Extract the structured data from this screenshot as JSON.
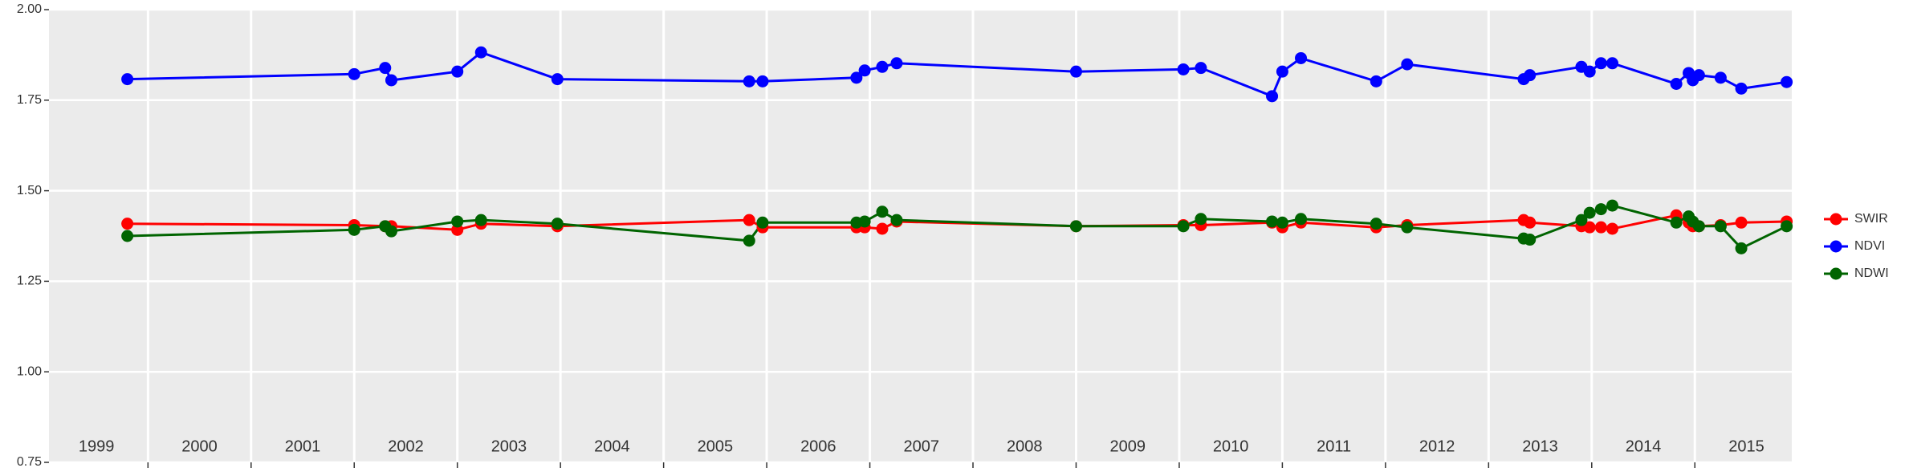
{
  "chart_data": {
    "type": "line",
    "x": [
      1999.8,
      2002.0,
      2002.3,
      2002.36,
      2003.0,
      2003.23,
      2003.97,
      2005.83,
      2005.96,
      2006.87,
      2006.95,
      2007.12,
      2007.26,
      2009.0,
      2010.04,
      2010.21,
      2010.9,
      2011.0,
      2011.18,
      2011.91,
      2012.21,
      2013.34,
      2013.4,
      2013.9,
      2013.98,
      2014.09,
      2014.2,
      2014.82,
      2014.94,
      2014.98,
      2015.04,
      2015.25,
      2015.45,
      2015.89
    ],
    "series": [
      {
        "name": "SWIR",
        "color": "#ff0000",
        "values": [
          1.409,
          1.405,
          1.402,
          1.402,
          1.392,
          1.409,
          1.402,
          1.419,
          1.399,
          1.399,
          1.399,
          1.395,
          1.415,
          1.402,
          1.405,
          1.405,
          1.412,
          1.399,
          1.412,
          1.399,
          1.405,
          1.419,
          1.412,
          1.402,
          1.399,
          1.399,
          1.395,
          1.432,
          1.412,
          1.402,
          1.402,
          1.405,
          1.412,
          1.415
        ]
      },
      {
        "name": "NDVI",
        "color": "#0000ff",
        "values": [
          1.808,
          1.822,
          1.839,
          1.805,
          1.829,
          1.882,
          1.808,
          1.802,
          1.802,
          1.812,
          1.832,
          1.842,
          1.852,
          1.829,
          1.835,
          1.839,
          1.761,
          1.829,
          1.866,
          1.802,
          1.849,
          1.808,
          1.819,
          1.842,
          1.829,
          1.852,
          1.852,
          1.795,
          1.825,
          1.805,
          1.819,
          1.812,
          1.782,
          1.8
        ]
      },
      {
        "name": "NDWI",
        "color": "#006400",
        "values": [
          1.375,
          1.392,
          1.402,
          1.388,
          1.415,
          1.419,
          1.409,
          1.362,
          1.412,
          1.412,
          1.415,
          1.442,
          1.419,
          1.402,
          1.402,
          1.422,
          1.415,
          1.412,
          1.422,
          1.409,
          1.399,
          1.368,
          1.365,
          1.419,
          1.439,
          1.449,
          1.459,
          1.412,
          1.429,
          1.415,
          1.402,
          1.402,
          1.341,
          1.402
        ]
      }
    ],
    "xlim": [
      1999.04,
      2015.94
    ],
    "ylim": [
      0.75,
      2.0
    ],
    "yticks": [
      0.75,
      {
        "value": 1.0,
        "label": "1.00"
      },
      1.25,
      {
        "value": 1.5,
        "label": "1.50"
      },
      1.75,
      {
        "value": 2.0,
        "label": "2.00"
      }
    ],
    "xticks": [
      {
        "value": 1999.5,
        "label": "1999"
      },
      {
        "value": 2000.5,
        "label": "2000"
      },
      {
        "value": 2001.5,
        "label": "2001"
      },
      {
        "value": 2002.5,
        "label": "2002"
      },
      {
        "value": 2003.5,
        "label": "2003"
      },
      {
        "value": 2004.5,
        "label": "2004"
      },
      {
        "value": 2005.5,
        "label": "2005"
      },
      {
        "value": 2006.5,
        "label": "2006"
      },
      {
        "value": 2007.5,
        "label": "2007"
      },
      {
        "value": 2008.5,
        "label": "2008"
      },
      {
        "value": 2009.5,
        "label": "2009"
      },
      {
        "value": 2010.5,
        "label": "2010"
      },
      {
        "value": 2011.5,
        "label": "2011"
      },
      {
        "value": 2012.5,
        "label": "2012"
      },
      {
        "value": 2013.5,
        "label": "2013"
      },
      {
        "value": 2014.5,
        "label": "2014"
      },
      {
        "value": 2015.5,
        "label": "2015"
      }
    ],
    "x_grid": [
      2000,
      2001,
      2002,
      2003,
      2004,
      2005,
      2006,
      2007,
      2008,
      2009,
      2010,
      2011,
      2012,
      2013,
      2014,
      2015
    ],
    "grid": true,
    "legend": "right"
  }
}
